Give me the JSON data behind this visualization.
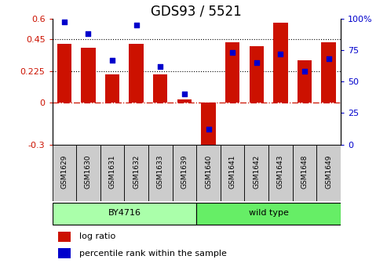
{
  "title": "GDS93 / 5521",
  "samples": [
    "GSM1629",
    "GSM1630",
    "GSM1631",
    "GSM1632",
    "GSM1633",
    "GSM1639",
    "GSM1640",
    "GSM1641",
    "GSM1642",
    "GSM1643",
    "GSM1648",
    "GSM1649"
  ],
  "log_ratio": [
    0.42,
    0.39,
    0.2,
    0.42,
    0.2,
    0.02,
    -0.3,
    0.43,
    0.4,
    0.57,
    0.3,
    0.43
  ],
  "percentile_rank": [
    97,
    88,
    67,
    95,
    62,
    40,
    12,
    73,
    65,
    72,
    58,
    68
  ],
  "strain_groups": [
    {
      "label": "BY4716",
      "start": 0,
      "end": 6,
      "color": "#aaffaa"
    },
    {
      "label": "wild type",
      "start": 6,
      "end": 12,
      "color": "#66ee66"
    }
  ],
  "bar_color": "#cc1100",
  "dot_color": "#0000cc",
  "ylim_left": [
    -0.3,
    0.6
  ],
  "ylim_right": [
    0,
    100
  ],
  "yticks_left": [
    -0.3,
    0,
    0.225,
    0.45,
    0.6
  ],
  "yticks_right": [
    0,
    25,
    50,
    75,
    100
  ],
  "ytick_labels_left": [
    "-0.3",
    "0",
    "0.225",
    "0.45",
    "0.6"
  ],
  "ytick_labels_right": [
    "0",
    "25",
    "50",
    "75",
    "100%"
  ],
  "hlines": [
    0.45,
    0.225
  ],
  "zero_line": 0,
  "bg_color": "#ffffff",
  "plot_bg": "#ffffff",
  "title_fontsize": 12,
  "axis_label_color_left": "#cc1100",
  "axis_label_color_right": "#0000cc",
  "bar_width": 0.6,
  "tick_box_color": "#cccccc",
  "legend_square_size": 0.012,
  "legend_fontsize": 8
}
